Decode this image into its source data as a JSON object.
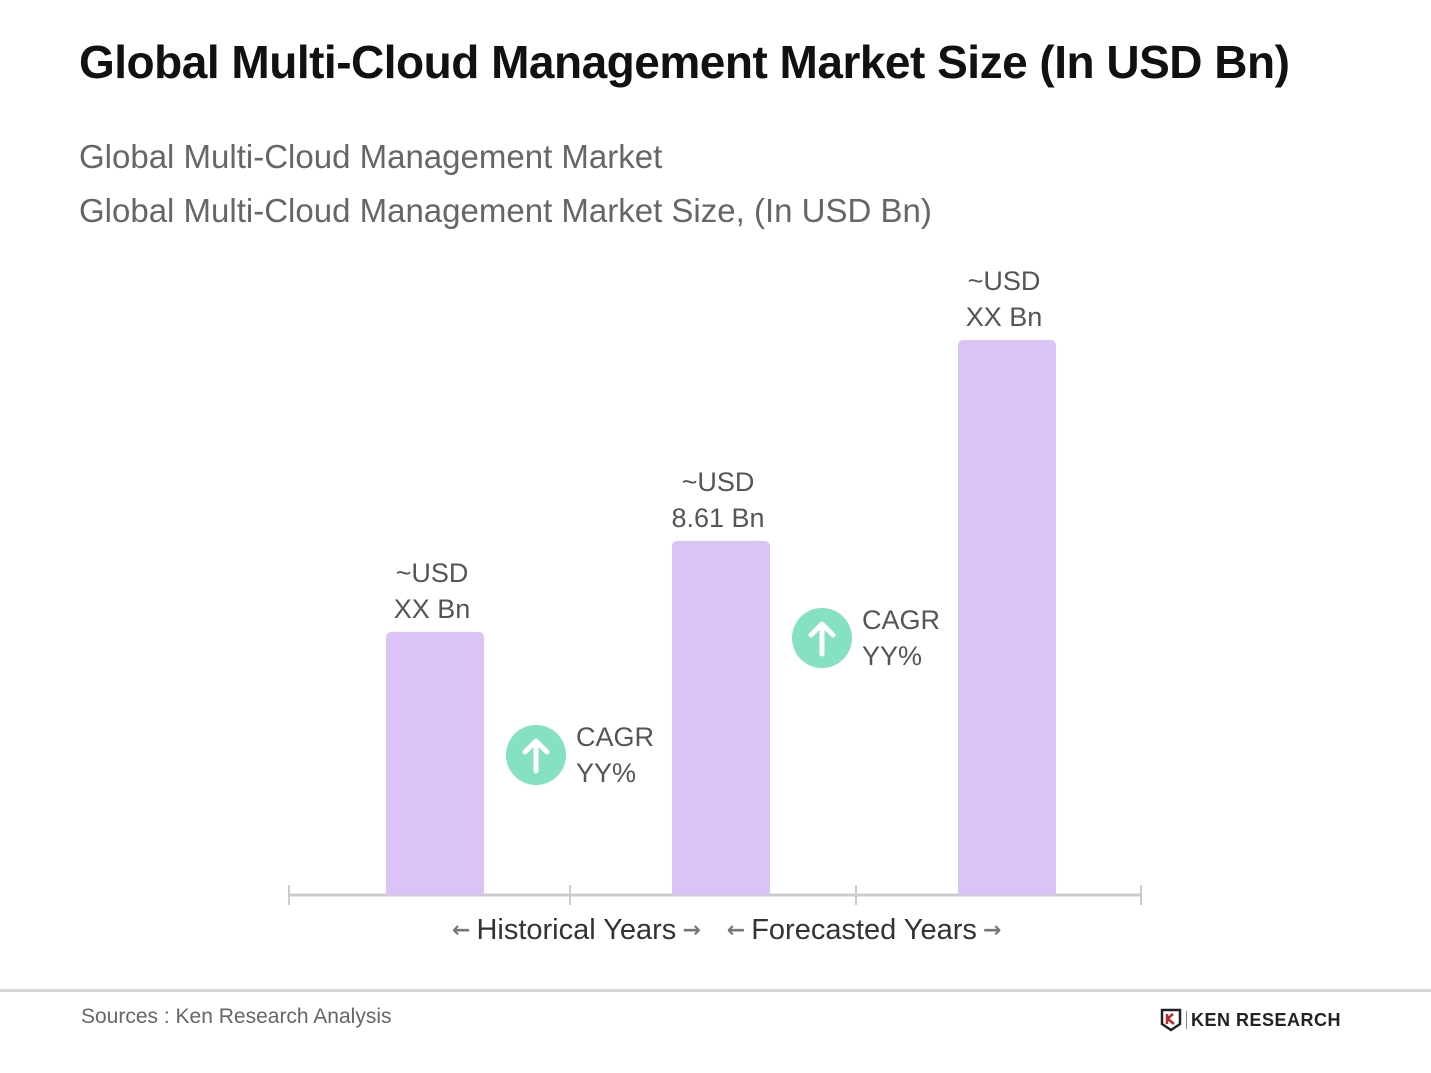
{
  "chart_data": {
    "type": "bar",
    "title": "Global Multi-Cloud Management Market Size (In USD Bn)",
    "subtitle_1": "Global Multi-Cloud Management Market",
    "subtitle_2": "Global Multi-Cloud Management Market Size, (In USD Bn)",
    "categories": [
      "",
      "",
      ""
    ],
    "values": [
      6.4,
      8.61,
      13.5
    ],
    "value_labels": [
      [
        "~USD",
        "XX Bn"
      ],
      [
        "~USD",
        "8.61 Bn"
      ],
      [
        "~USD",
        "XX Bn"
      ]
    ],
    "cagr_labels": [
      [
        "CAGR",
        "YY%"
      ],
      [
        "CAGR",
        "YY%"
      ]
    ],
    "period_labels": [
      "Historical Years",
      "Forecasted Years"
    ],
    "ylim": [
      0,
      14
    ],
    "grid": false,
    "colors": {
      "bar": "#dcc3f7",
      "cagr_icon": "#86e0c2",
      "axis": "#cccccc"
    }
  },
  "footer": {
    "source": "Sources : Ken Research Analysis",
    "logo": "KEN RESEARCH"
  },
  "icons": {
    "cagr": "arrow-up-circle-icon"
  }
}
